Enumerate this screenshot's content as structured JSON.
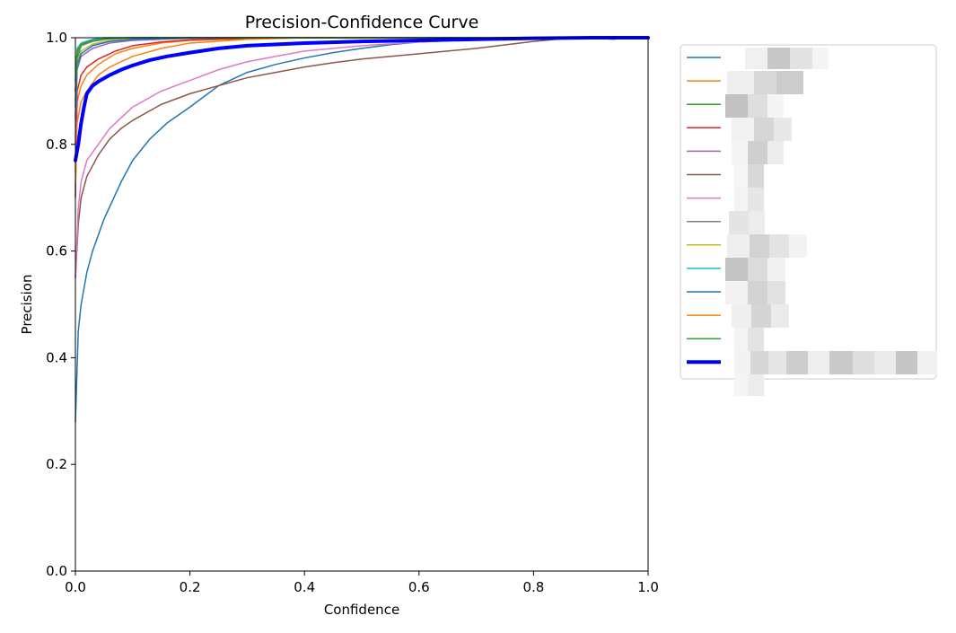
{
  "chart_data": {
    "type": "line",
    "title": "Precision-Confidence Curve",
    "xlabel": "Confidence",
    "ylabel": "Precision",
    "xlim": [
      0.0,
      1.0
    ],
    "ylim": [
      0.0,
      1.0
    ],
    "xticks": [
      "0.0",
      "0.2",
      "0.4",
      "0.6",
      "0.8",
      "1.0"
    ],
    "yticks": [
      "0.0",
      "0.2",
      "0.4",
      "0.6",
      "0.8",
      "1.0"
    ],
    "grid": false,
    "legend_position": "outside right",
    "legend_labels_obscured": true,
    "series": [
      {
        "color": "#1f77b4",
        "width": 1.5,
        "points": [
          [
            0.0,
            0.28
          ],
          [
            0.005,
            0.45
          ],
          [
            0.01,
            0.5
          ],
          [
            0.02,
            0.56
          ],
          [
            0.03,
            0.6
          ],
          [
            0.05,
            0.66
          ],
          [
            0.08,
            0.73
          ],
          [
            0.1,
            0.77
          ],
          [
            0.13,
            0.81
          ],
          [
            0.16,
            0.84
          ],
          [
            0.2,
            0.87
          ],
          [
            0.25,
            0.91
          ],
          [
            0.3,
            0.935
          ],
          [
            0.35,
            0.95
          ],
          [
            0.4,
            0.962
          ],
          [
            0.45,
            0.972
          ],
          [
            0.5,
            0.98
          ],
          [
            0.55,
            0.987
          ],
          [
            0.6,
            0.992
          ],
          [
            0.7,
            0.996
          ],
          [
            0.8,
            0.999
          ],
          [
            0.9,
            1.0
          ],
          [
            0.94,
            0.997
          ],
          [
            0.95,
            1.0
          ],
          [
            1.0,
            1.0
          ]
        ]
      },
      {
        "color": "#ff7f0e",
        "width": 1.5,
        "points": [
          [
            0.0,
            0.75
          ],
          [
            0.003,
            0.88
          ],
          [
            0.01,
            0.91
          ],
          [
            0.02,
            0.93
          ],
          [
            0.04,
            0.95
          ],
          [
            0.07,
            0.97
          ],
          [
            0.1,
            0.98
          ],
          [
            0.15,
            0.99
          ],
          [
            0.2,
            0.995
          ],
          [
            0.3,
            0.998
          ],
          [
            0.4,
            1.0
          ],
          [
            1.0,
            1.0
          ]
        ]
      },
      {
        "color": "#2ca02c",
        "width": 1.5,
        "points": [
          [
            0.0,
            0.85
          ],
          [
            0.003,
            0.96
          ],
          [
            0.01,
            0.985
          ],
          [
            0.03,
            0.995
          ],
          [
            0.06,
            0.998
          ],
          [
            0.1,
            1.0
          ],
          [
            1.0,
            1.0
          ]
        ]
      },
      {
        "color": "#d62728",
        "width": 1.5,
        "points": [
          [
            0.0,
            0.7
          ],
          [
            0.003,
            0.9
          ],
          [
            0.01,
            0.93
          ],
          [
            0.02,
            0.945
          ],
          [
            0.04,
            0.96
          ],
          [
            0.07,
            0.975
          ],
          [
            0.1,
            0.985
          ],
          [
            0.15,
            0.992
          ],
          [
            0.2,
            0.996
          ],
          [
            0.3,
            0.999
          ],
          [
            0.4,
            1.0
          ],
          [
            1.0,
            1.0
          ]
        ]
      },
      {
        "color": "#9467bd",
        "width": 1.5,
        "points": [
          [
            0.0,
            0.8
          ],
          [
            0.003,
            0.94
          ],
          [
            0.01,
            0.965
          ],
          [
            0.03,
            0.98
          ],
          [
            0.06,
            0.99
          ],
          [
            0.1,
            0.995
          ],
          [
            0.2,
            0.999
          ],
          [
            0.3,
            1.0
          ],
          [
            1.0,
            1.0
          ]
        ]
      },
      {
        "color": "#8c564b",
        "width": 1.5,
        "points": [
          [
            0.0,
            0.55
          ],
          [
            0.005,
            0.65
          ],
          [
            0.01,
            0.7
          ],
          [
            0.02,
            0.74
          ],
          [
            0.04,
            0.78
          ],
          [
            0.06,
            0.81
          ],
          [
            0.08,
            0.83
          ],
          [
            0.1,
            0.845
          ],
          [
            0.15,
            0.875
          ],
          [
            0.2,
            0.895
          ],
          [
            0.25,
            0.91
          ],
          [
            0.3,
            0.925
          ],
          [
            0.35,
            0.935
          ],
          [
            0.4,
            0.945
          ],
          [
            0.45,
            0.953
          ],
          [
            0.5,
            0.96
          ],
          [
            0.6,
            0.97
          ],
          [
            0.7,
            0.98
          ],
          [
            0.8,
            0.993
          ],
          [
            0.85,
            0.998
          ],
          [
            0.9,
            1.0
          ],
          [
            1.0,
            1.0
          ]
        ]
      },
      {
        "color": "#e377c2",
        "width": 1.5,
        "points": [
          [
            0.0,
            0.55
          ],
          [
            0.005,
            0.68
          ],
          [
            0.01,
            0.73
          ],
          [
            0.02,
            0.77
          ],
          [
            0.04,
            0.8
          ],
          [
            0.06,
            0.83
          ],
          [
            0.08,
            0.85
          ],
          [
            0.1,
            0.87
          ],
          [
            0.15,
            0.9
          ],
          [
            0.2,
            0.92
          ],
          [
            0.25,
            0.94
          ],
          [
            0.3,
            0.955
          ],
          [
            0.35,
            0.965
          ],
          [
            0.4,
            0.975
          ],
          [
            0.5,
            0.985
          ],
          [
            0.6,
            0.992
          ],
          [
            0.7,
            0.997
          ],
          [
            0.8,
            1.0
          ],
          [
            1.0,
            1.0
          ]
        ]
      },
      {
        "color": "#7f7f7f",
        "width": 1.5,
        "points": [
          [
            0.0,
            0.9
          ],
          [
            0.003,
            0.97
          ],
          [
            0.01,
            0.985
          ],
          [
            0.03,
            0.993
          ],
          [
            0.06,
            0.998
          ],
          [
            0.1,
            1.0
          ],
          [
            1.0,
            1.0
          ]
        ]
      },
      {
        "color": "#bcbd22",
        "width": 1.5,
        "points": [
          [
            0.0,
            0.88
          ],
          [
            0.003,
            0.955
          ],
          [
            0.01,
            0.975
          ],
          [
            0.03,
            0.988
          ],
          [
            0.06,
            0.995
          ],
          [
            0.1,
            0.998
          ],
          [
            0.15,
            1.0
          ],
          [
            1.0,
            1.0
          ]
        ]
      },
      {
        "color": "#17becf",
        "width": 1.5,
        "points": [
          [
            0.0,
            0.92
          ],
          [
            0.003,
            0.98
          ],
          [
            0.01,
            0.99
          ],
          [
            0.03,
            0.997
          ],
          [
            0.05,
            1.0
          ],
          [
            1.0,
            1.0
          ]
        ]
      },
      {
        "color": "#1f77b4",
        "width": 1.5,
        "points": [
          [
            0.0,
            0.87
          ],
          [
            0.003,
            0.95
          ],
          [
            0.01,
            0.97
          ],
          [
            0.03,
            0.985
          ],
          [
            0.06,
            0.993
          ],
          [
            0.1,
            0.997
          ],
          [
            0.2,
            1.0
          ],
          [
            1.0,
            1.0
          ]
        ]
      },
      {
        "color": "#ff7f0e",
        "width": 1.5,
        "points": [
          [
            0.0,
            0.72
          ],
          [
            0.003,
            0.84
          ],
          [
            0.01,
            0.88
          ],
          [
            0.02,
            0.9
          ],
          [
            0.04,
            0.93
          ],
          [
            0.06,
            0.945
          ],
          [
            0.08,
            0.955
          ],
          [
            0.1,
            0.965
          ],
          [
            0.15,
            0.98
          ],
          [
            0.2,
            0.99
          ],
          [
            0.3,
            0.997
          ],
          [
            0.4,
            1.0
          ],
          [
            1.0,
            1.0
          ]
        ]
      },
      {
        "color": "#2ca02c",
        "width": 1.5,
        "points": [
          [
            0.0,
            0.9
          ],
          [
            0.003,
            0.975
          ],
          [
            0.01,
            0.988
          ],
          [
            0.03,
            0.995
          ],
          [
            0.06,
            0.999
          ],
          [
            0.1,
            1.0
          ],
          [
            1.0,
            1.0
          ]
        ]
      },
      {
        "color": "#0000ff",
        "width": 4,
        "points": [
          [
            0.0,
            0.77
          ],
          [
            0.005,
            0.8
          ],
          [
            0.01,
            0.84
          ],
          [
            0.015,
            0.87
          ],
          [
            0.02,
            0.895
          ],
          [
            0.03,
            0.91
          ],
          [
            0.04,
            0.918
          ],
          [
            0.06,
            0.93
          ],
          [
            0.08,
            0.94
          ],
          [
            0.1,
            0.948
          ],
          [
            0.13,
            0.958
          ],
          [
            0.16,
            0.965
          ],
          [
            0.2,
            0.972
          ],
          [
            0.25,
            0.98
          ],
          [
            0.3,
            0.985
          ],
          [
            0.4,
            0.99
          ],
          [
            0.5,
            0.993
          ],
          [
            0.6,
            0.995
          ],
          [
            0.7,
            0.997
          ],
          [
            0.8,
            0.999
          ],
          [
            0.9,
            1.0
          ],
          [
            1.0,
            1.0
          ]
        ]
      }
    ]
  }
}
